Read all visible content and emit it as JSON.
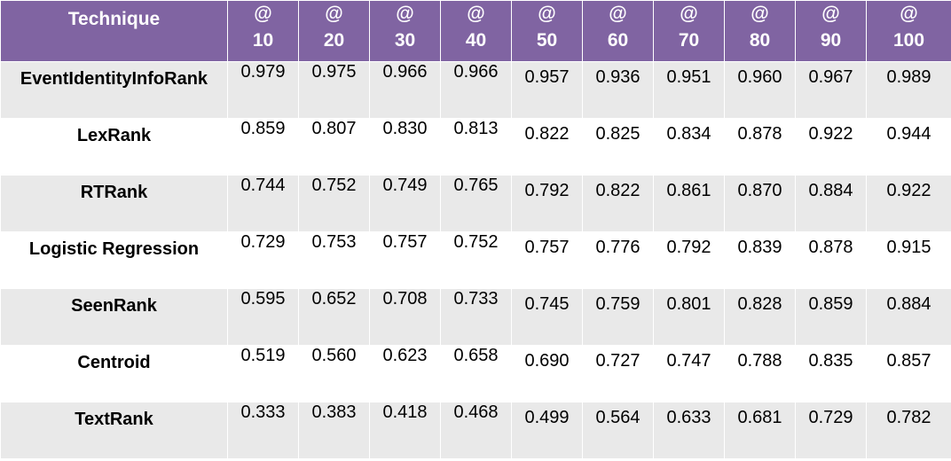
{
  "chart_data": {
    "type": "table",
    "columns": [
      "Technique",
      "@10",
      "@20",
      "@30",
      "@40",
      "@50",
      "@60",
      "@70",
      "@80",
      "@90",
      "@100"
    ],
    "header": [
      {
        "at": "",
        "k": "Technique"
      },
      {
        "at": "@",
        "k": "10"
      },
      {
        "at": "@",
        "k": "20"
      },
      {
        "at": "@",
        "k": "30"
      },
      {
        "at": "@",
        "k": "40"
      },
      {
        "at": "@",
        "k": "50"
      },
      {
        "at": "@",
        "k": "60"
      },
      {
        "at": "@",
        "k": "70"
      },
      {
        "at": "@",
        "k": "80"
      },
      {
        "at": "@",
        "k": "90"
      },
      {
        "at": "@",
        "k": "100"
      }
    ],
    "rows": [
      {
        "name": "EventIdentityInfoRank",
        "values": [
          "0.979",
          "0.975",
          "0.966",
          "0.966",
          "0.957",
          "0.936",
          "0.951",
          "0.960",
          "0.967",
          "0.989"
        ]
      },
      {
        "name": "LexRank",
        "values": [
          "0.859",
          "0.807",
          "0.830",
          "0.813",
          "0.822",
          "0.825",
          "0.834",
          "0.878",
          "0.922",
          "0.944"
        ]
      },
      {
        "name": "RTRank",
        "values": [
          "0.744",
          "0.752",
          "0.749",
          "0.765",
          "0.792",
          "0.822",
          "0.861",
          "0.870",
          "0.884",
          "0.922"
        ]
      },
      {
        "name": "Logistic Regression",
        "values": [
          "0.729",
          "0.753",
          "0.757",
          "0.752",
          "0.757",
          "0.776",
          "0.792",
          "0.839",
          "0.878",
          "0.915"
        ]
      },
      {
        "name": "SeenRank",
        "values": [
          "0.595",
          "0.652",
          "0.708",
          "0.733",
          "0.745",
          "0.759",
          "0.801",
          "0.828",
          "0.859",
          "0.884"
        ]
      },
      {
        "name": "Centroid",
        "values": [
          "0.519",
          "0.560",
          "0.623",
          "0.658",
          "0.690",
          "0.727",
          "0.747",
          "0.788",
          "0.835",
          "0.857"
        ]
      },
      {
        "name": "TextRank",
        "values": [
          "0.333",
          "0.383",
          "0.418",
          "0.468",
          "0.499",
          "0.564",
          "0.633",
          "0.681",
          "0.729",
          "0.782"
        ]
      }
    ]
  },
  "colors": {
    "header_bg": "#8064a2",
    "header_text": "#ffffff",
    "row_shade": "#e9e9e9",
    "row_plain": "#ffffff"
  }
}
